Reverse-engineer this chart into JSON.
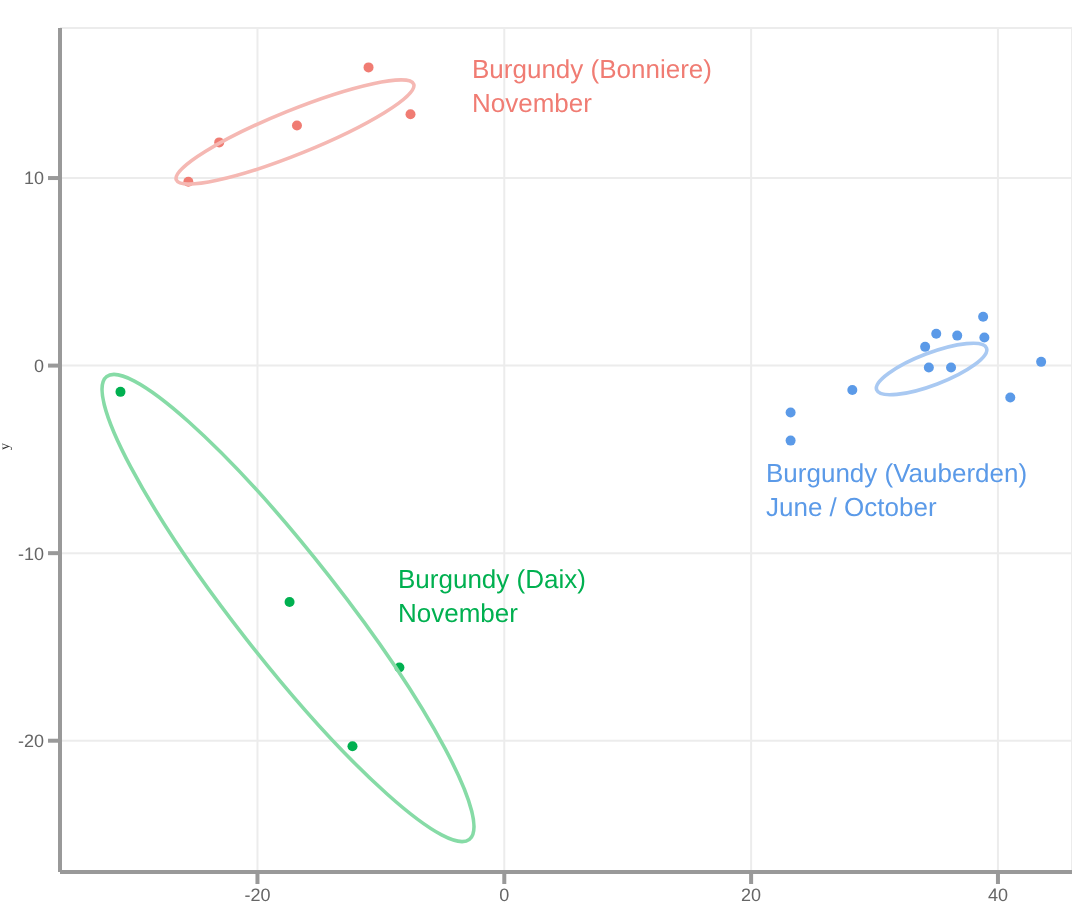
{
  "chart_data": {
    "type": "scatter",
    "ylabel": "y",
    "xlim": [
      -36,
      46
    ],
    "ylim": [
      -27,
      18
    ],
    "xticks": [
      -20,
      0,
      20,
      40
    ],
    "yticks": [
      -20,
      -10,
      0,
      10
    ],
    "grid": true,
    "marker": "circle",
    "series": [
      {
        "color": "#f07c73",
        "x": [
          -11,
          -23.1,
          -16.8,
          -7.6,
          -25.6
        ],
        "values": [
          15.9,
          11.9,
          12.8,
          13.4,
          9.8
        ]
      },
      {
        "color": "#00b050",
        "x": [
          -31.1,
          -17.4,
          -8.5,
          -12.3
        ],
        "values": [
          -1.4,
          -12.6,
          -16.1,
          -20.3
        ]
      },
      {
        "color": "#5b9ae8",
        "x": [
          23.2,
          23.2,
          28.2,
          34.1,
          35.0,
          36.7,
          38.8,
          38.9,
          34.4,
          36.2,
          41.0,
          43.5
        ],
        "values": [
          -2.5,
          -4.0,
          -1.3,
          1.0,
          1.7,
          1.6,
          2.6,
          1.5,
          -0.1,
          -0.1,
          -1.7,
          0.2
        ]
      }
    ],
    "annotations": [
      "Burgundy (Bonniere)\nNovember",
      "Burgundy (Daix)\nNovember",
      "Burgundy (Vauberden)\nJune / October"
    ]
  }
}
